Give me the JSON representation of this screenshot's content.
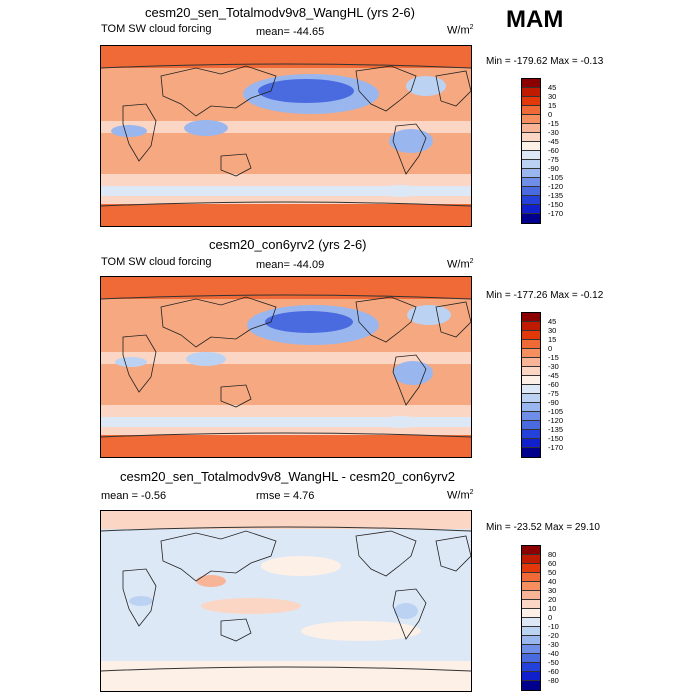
{
  "season": "MAM",
  "panels": [
    {
      "title": "cesm20_sen_Totalmodv9v8_WangHL (yrs 2-6)",
      "left_label": "TOM SW cloud forcing",
      "center_label": "mean= -44.65",
      "units": "W/m",
      "units_sup": "2",
      "minmax": "Min = -179.62 Max =  -0.13",
      "labels": [
        "45",
        "30",
        "15",
        "0",
        "-15",
        "-30",
        "-45",
        "-60",
        "-75",
        "-90",
        "-105",
        "-120",
        "-135",
        "-150",
        "-170"
      ],
      "colors": [
        "#8b0000",
        "#c01a00",
        "#e2380a",
        "#ef6a36",
        "#f58f60",
        "#f8b497",
        "#fbd6c4",
        "#fdf0e7",
        "#dde8f7",
        "#bcd2f3",
        "#99b7ee",
        "#6f8ee8",
        "#4a6ae0",
        "#2442da",
        "#0f20cc",
        "#00008c"
      ]
    },
    {
      "title": "cesm20_con6yrv2 (yrs 2-6)",
      "left_label": "TOM SW cloud forcing",
      "center_label": "mean= -44.09",
      "units": "W/m",
      "units_sup": "2",
      "minmax": "Min = -177.26 Max =  -0.12",
      "labels": [
        "45",
        "30",
        "15",
        "0",
        "-15",
        "-30",
        "-45",
        "-60",
        "-75",
        "-90",
        "-105",
        "-120",
        "-135",
        "-150",
        "-170"
      ],
      "colors": [
        "#8b0000",
        "#c01a00",
        "#e2380a",
        "#ef6a36",
        "#f58f60",
        "#f8b497",
        "#fbd6c4",
        "#fdf0e7",
        "#dde8f7",
        "#bcd2f3",
        "#99b7ee",
        "#6f8ee8",
        "#4a6ae0",
        "#2442da",
        "#0f20cc",
        "#00008c"
      ]
    },
    {
      "title": "cesm20_sen_Totalmodv9v8_WangHL - cesm20_con6yrv2",
      "left_label": "mean =  -0.56",
      "center_label": "rmse =   4.76",
      "units": "W/m",
      "units_sup": "2",
      "minmax": "Min = -23.52 Max =  29.10",
      "labels": [
        "80",
        "60",
        "50",
        "40",
        "30",
        "20",
        "10",
        "0",
        "-10",
        "-20",
        "-30",
        "-40",
        "-50",
        "-60",
        "-80"
      ],
      "colors": [
        "#8b0000",
        "#c01a00",
        "#e2380a",
        "#ef6a36",
        "#f58f60",
        "#f8b497",
        "#fbd6c4",
        "#fdf0e7",
        "#dde8f7",
        "#bcd2f3",
        "#99b7ee",
        "#6f8ee8",
        "#4a6ae0",
        "#2442da",
        "#0f20cc",
        "#00008c"
      ]
    }
  ]
}
